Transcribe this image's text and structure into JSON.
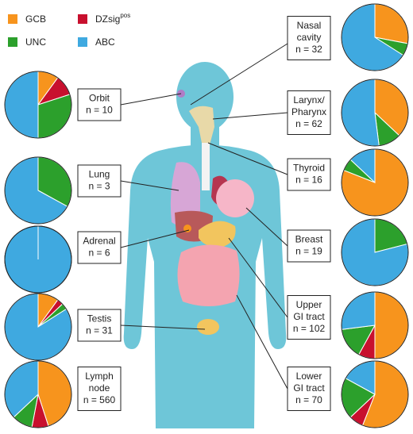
{
  "legend": [
    {
      "name": "GCB",
      "color": "#f7941d"
    },
    {
      "name": "DZsig",
      "superscript": "pos",
      "color": "#c8102e"
    },
    {
      "name": "UNC",
      "color": "#2ca02c"
    },
    {
      "name": "ABC",
      "color": "#3fa9e0"
    }
  ],
  "chart_data": [
    {
      "type": "pie",
      "title": [
        "Orbit"
      ],
      "subtitle": "n = 10",
      "values": [
        10,
        10,
        30,
        50
      ]
    },
    {
      "type": "pie",
      "title": [
        "Lung"
      ],
      "subtitle": "n = 3",
      "values": [
        0,
        0,
        33,
        67
      ]
    },
    {
      "type": "pie",
      "title": [
        "Adrenal"
      ],
      "subtitle": "n = 6",
      "values": [
        0,
        0,
        0,
        100
      ]
    },
    {
      "type": "pie",
      "title": [
        "Testis"
      ],
      "subtitle": "n = 31",
      "values": [
        10,
        3,
        3,
        84
      ]
    },
    {
      "type": "pie",
      "title": [
        "Lymph",
        "node"
      ],
      "subtitle": "n = 560",
      "values": [
        45,
        8,
        10,
        37
      ]
    },
    {
      "type": "pie",
      "title": [
        "Nasal",
        "cavity"
      ],
      "subtitle": "n = 32",
      "values": [
        28,
        0,
        6,
        66
      ]
    },
    {
      "type": "pie",
      "title": [
        "Larynx/",
        "Pharynx"
      ],
      "subtitle": "n = 62",
      "values": [
        37,
        0,
        11,
        52
      ]
    },
    {
      "type": "pie",
      "title": [
        "Thyroid"
      ],
      "subtitle": "n = 16",
      "values": [
        81,
        0,
        6,
        13
      ]
    },
    {
      "type": "pie",
      "title": [
        "Breast"
      ],
      "subtitle": "n = 19",
      "values": [
        0,
        0,
        21,
        79
      ]
    },
    {
      "type": "pie",
      "title": [
        "Upper",
        "GI tract"
      ],
      "subtitle": "n = 102",
      "values": [
        50,
        8,
        15,
        27
      ]
    },
    {
      "type": "pie",
      "title": [
        "Lower",
        "GI tract"
      ],
      "subtitle": "n = 70",
      "values": [
        56,
        7,
        20,
        17
      ]
    }
  ]
}
